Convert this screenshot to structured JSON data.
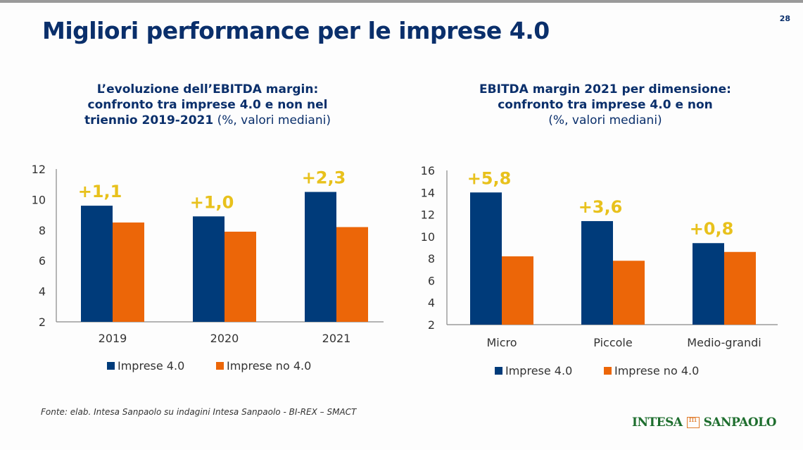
{
  "page": {
    "title": "Migliori performance per le imprese 4.0",
    "page_number": "28",
    "footer": "Fonte: elab. Intesa Sanpaolo su indagini Intesa Sanpaolo - BI-REX – SMACT",
    "logo_left": "INTESA",
    "logo_right": "SANPAOLO"
  },
  "colors": {
    "series1": "#003b7a",
    "series2": "#ec6608",
    "delta": "#e8c11c",
    "title": "#0a2f6b"
  },
  "chart_titles": [
    {
      "line1": "L’evoluzione dell’EBITDA margin:",
      "line2": "confronto tra imprese 4.0 e non nel",
      "line3_bold": "triennio 2019-2021",
      "line3_light": " (%, valori mediani)"
    },
    {
      "line1": "EBITDA margin 2021 per dimensione:",
      "line2": "confronto tra imprese 4.0 e non",
      "line3_bold": "",
      "line3_light": "(%, valori mediani)"
    }
  ],
  "chart_data": [
    {
      "type": "bar",
      "title": "L’evoluzione dell’EBITDA margin: confronto tra imprese 4.0 e non nel triennio 2019-2021 (%, valori mediani)",
      "categories": [
        "2019",
        "2020",
        "2021"
      ],
      "series": [
        {
          "name": "Imprese 4.0",
          "values": [
            9.6,
            8.9,
            10.5
          ]
        },
        {
          "name": "Imprese no 4.0",
          "values": [
            8.5,
            7.9,
            8.2
          ]
        }
      ],
      "annotations": [
        "+1,1",
        "+1,0",
        "+2,3"
      ],
      "yticks": [
        "2",
        "4",
        "6",
        "8",
        "10",
        "12"
      ],
      "ylim": [
        2,
        12
      ],
      "xlabel": "",
      "ylabel": "",
      "grid": false,
      "legend": "bottom"
    },
    {
      "type": "bar",
      "title": "EBITDA margin 2021 per dimensione: confronto tra imprese 4.0 e non (%, valori mediani)",
      "categories": [
        "Micro",
        "Piccole",
        "Medio-grandi"
      ],
      "series": [
        {
          "name": "Imprese 4.0",
          "values": [
            14.0,
            11.4,
            9.4
          ]
        },
        {
          "name": "Imprese no 4.0",
          "values": [
            8.2,
            7.8,
            8.6
          ]
        }
      ],
      "annotations": [
        "+5,8",
        "+3,6",
        "+0,8"
      ],
      "yticks": [
        "2",
        "4",
        "6",
        "8",
        "10",
        "12",
        "14",
        "16"
      ],
      "ylim": [
        2,
        16
      ],
      "xlabel": "",
      "ylabel": "",
      "grid": false,
      "legend": "bottom"
    }
  ]
}
